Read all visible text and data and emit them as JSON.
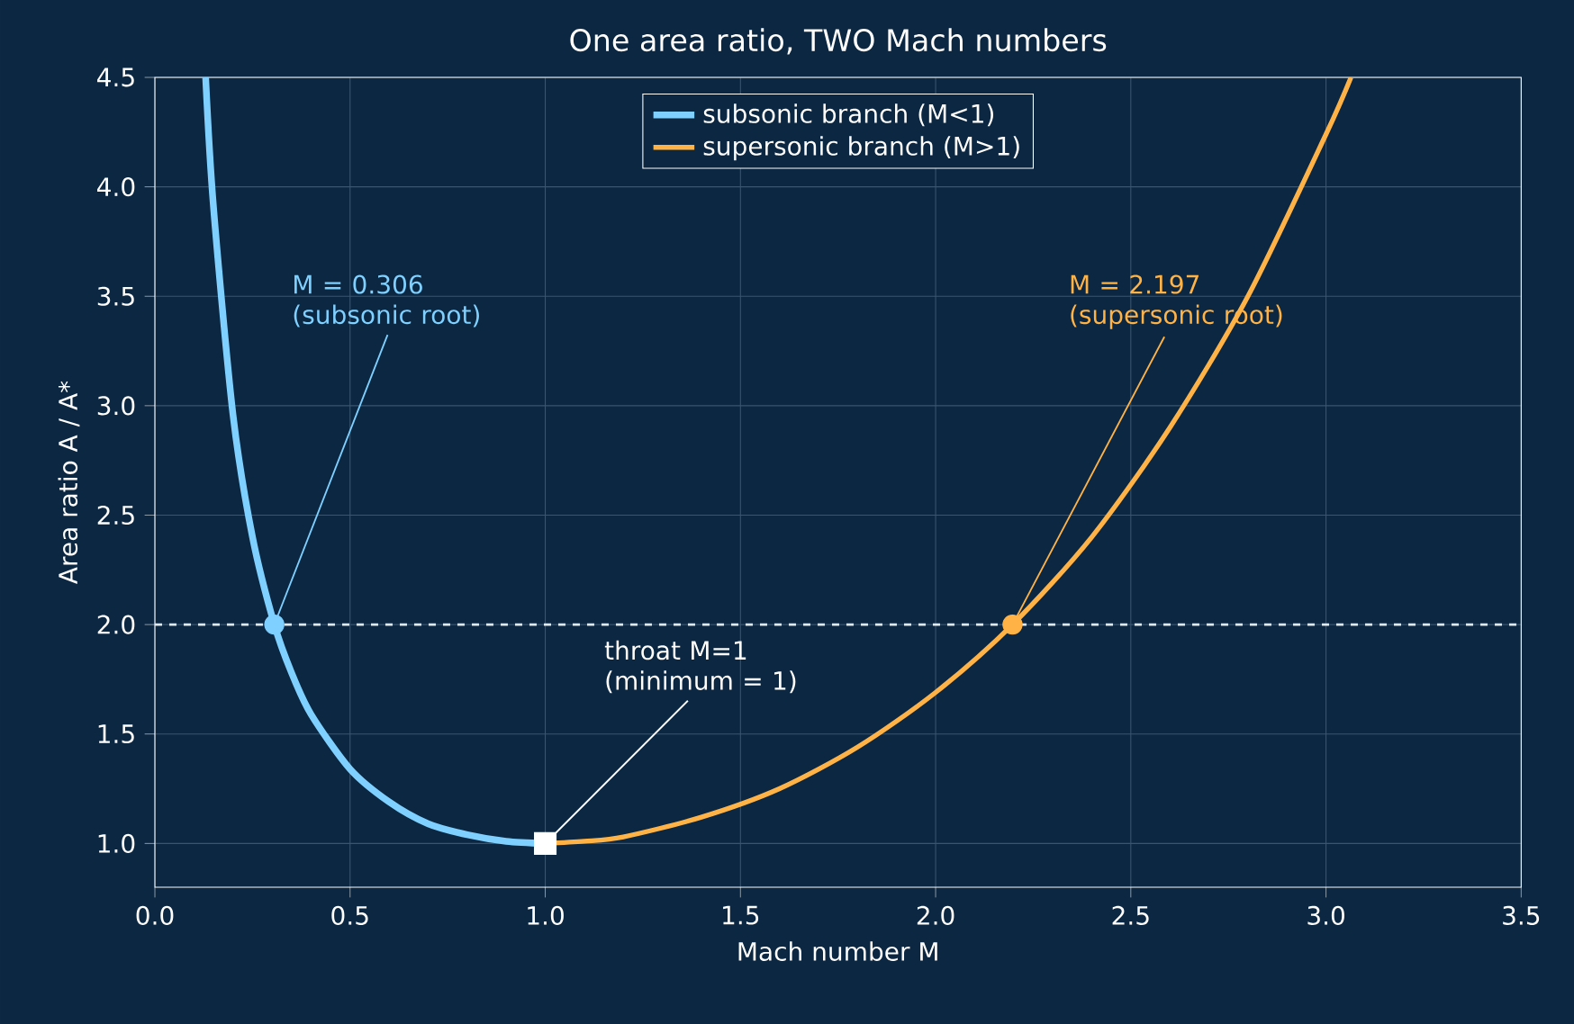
{
  "chart_data": {
    "type": "line",
    "title": "One area ratio, TWO Mach numbers",
    "xlabel": "Mach number  M",
    "ylabel": "Area ratio  A / A*",
    "xlim": [
      0,
      3.5
    ],
    "ylim": [
      0.8,
      4.5
    ],
    "xticks": [
      {
        "value": 0,
        "label": "0.0"
      },
      0.5,
      {
        "value": 1,
        "label": "1.0"
      },
      1.5,
      {
        "value": 2,
        "label": "2.0"
      },
      2.5,
      {
        "value": 3,
        "label": "3.0"
      },
      3.5
    ],
    "yticks": [
      {
        "value": 1,
        "label": "1.0"
      },
      1.5,
      {
        "value": 2,
        "label": "2.0"
      },
      2.5,
      {
        "value": 3,
        "label": "3.0"
      },
      3.5,
      {
        "value": 4,
        "label": "4.0"
      },
      4.5
    ],
    "grid": true,
    "legend": "top",
    "line_style": "solid",
    "series": [
      {
        "name": "subsonic branch (M<1)",
        "color": "#7fd0ff",
        "x": [
          0.13,
          0.15,
          0.2,
          0.25,
          0.306,
          0.35,
          0.4,
          0.5,
          0.6,
          0.7,
          0.8,
          0.9,
          1.0
        ],
        "values": [
          4.5,
          3.91,
          2.96,
          2.4,
          2.0,
          1.78,
          1.59,
          1.34,
          1.19,
          1.09,
          1.04,
          1.01,
          1.0
        ]
      },
      {
        "name": "supersonic branch (M>1)",
        "color": "#ffb347",
        "x": [
          1.0,
          1.1,
          1.2,
          1.4,
          1.6,
          1.8,
          2.0,
          2.197,
          2.4,
          2.6,
          2.8,
          3.0,
          3.064
        ],
        "values": [
          1.0,
          1.01,
          1.03,
          1.12,
          1.25,
          1.44,
          1.69,
          2.0,
          2.4,
          2.9,
          3.5,
          4.24,
          4.5
        ]
      },
      {
        "type": "scatter",
        "marker": "circle",
        "color": "#7fd0ff",
        "x": [
          0.306
        ],
        "values": [
          2.0
        ]
      },
      {
        "type": "scatter",
        "marker": "circle",
        "color": "#ffb347",
        "x": [
          2.197
        ],
        "values": [
          2.0
        ]
      },
      {
        "type": "scatter",
        "marker": "square",
        "color": "#ffffff",
        "x": [
          1.0
        ],
        "values": [
          1.0
        ]
      }
    ],
    "ref_lines": [
      {
        "axis": "y",
        "value": 2.0,
        "color": "#e0e8f0",
        "line_style": "dashed"
      }
    ],
    "annotations": [
      {
        "text": "M = 0.306 (subsonic root)",
        "x": 0.306,
        "y": 2.0
      },
      {
        "text": "M = 2.197 (supersonic root)",
        "x": 2.197,
        "y": 2.0
      },
      {
        "text": "throat  M=1 (minimum = 1)",
        "x": 1.0,
        "y": 1.0
      }
    ]
  }
}
